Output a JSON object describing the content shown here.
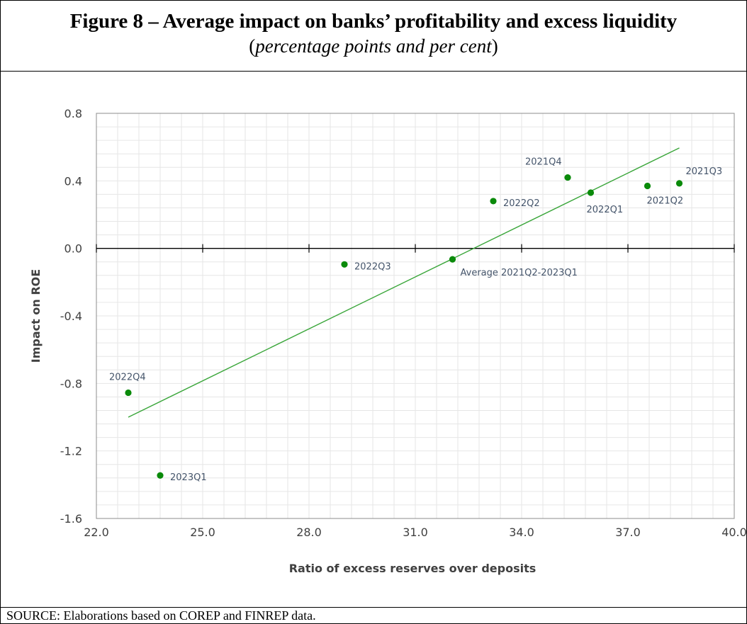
{
  "figure": {
    "title": "Figure 8 – Average impact on banks’ profitability and excess liquidity",
    "subtitle_open": "(",
    "subtitle_italic": "percentage points and per cent",
    "subtitle_close": ")",
    "source": "SOURCE: Elaborations based on COREP and FINREP data."
  },
  "colors": {
    "point": "#0a8a0a",
    "trend": "#3aa63a",
    "grid": "#e6e6e6",
    "axis": "#000000"
  },
  "chart_data": {
    "type": "scatter",
    "xlabel": "Ratio of excess reserves over deposits",
    "ylabel": "Impact on ROE",
    "xlim": [
      22.0,
      40.0
    ],
    "ylim": [
      -1.6,
      0.8
    ],
    "x_ticks": [
      "22.0",
      "25.0",
      "28.0",
      "31.0",
      "34.0",
      "37.0",
      "40.0"
    ],
    "y_ticks": [
      "0.8",
      "0.4",
      "0.0",
      "-0.4",
      "-0.8",
      "-1.2",
      "-1.6"
    ],
    "grid": true,
    "points": [
      {
        "label": "2021Q2",
        "x": 37.55,
        "y": 0.37
      },
      {
        "label": "2021Q3",
        "x": 38.45,
        "y": 0.385
      },
      {
        "label": "2021Q4",
        "x": 35.3,
        "y": 0.42
      },
      {
        "label": "2022Q1",
        "x": 35.95,
        "y": 0.33
      },
      {
        "label": "2022Q2",
        "x": 33.2,
        "y": 0.28
      },
      {
        "label": "2022Q3",
        "x": 29.0,
        "y": -0.095
      },
      {
        "label": "2022Q4",
        "x": 22.9,
        "y": -0.855
      },
      {
        "label": "2023Q1",
        "x": 23.8,
        "y": -1.345
      },
      {
        "label": "Average 2021Q2-2023Q1",
        "x": 32.05,
        "y": -0.065
      }
    ],
    "trendline": {
      "x": [
        22.9,
        38.45
      ],
      "y": [
        -1.0,
        0.595
      ]
    }
  }
}
